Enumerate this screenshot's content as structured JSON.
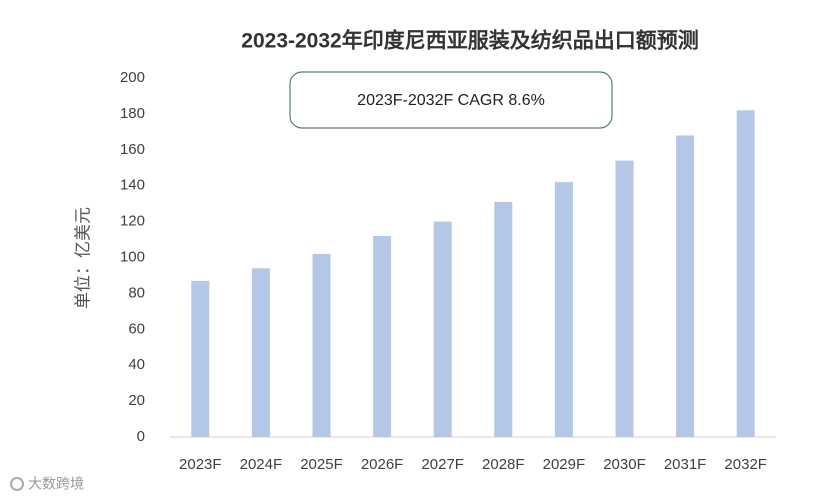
{
  "chart_data": {
    "type": "bar",
    "title": "2023-2032年印度尼西亚服装及纺织品出口额预测",
    "annotation": "2023F-2032F CAGR 8.6%",
    "y_label": "单位：亿美元",
    "watermark": "大数跨境",
    "categories": [
      "2023F",
      "2024F",
      "2025F",
      "2026F",
      "2027F",
      "2028F",
      "2029F",
      "2030F",
      "2031F",
      "2032F"
    ],
    "values": [
      87,
      94,
      102,
      112,
      120,
      131,
      142,
      154,
      168,
      182
    ],
    "color": "#b4c7e7",
    "ylim": [
      0,
      200
    ],
    "yticks": [
      0,
      20,
      40,
      60,
      80,
      100,
      120,
      140,
      160,
      180,
      200
    ],
    "grid": false
  }
}
